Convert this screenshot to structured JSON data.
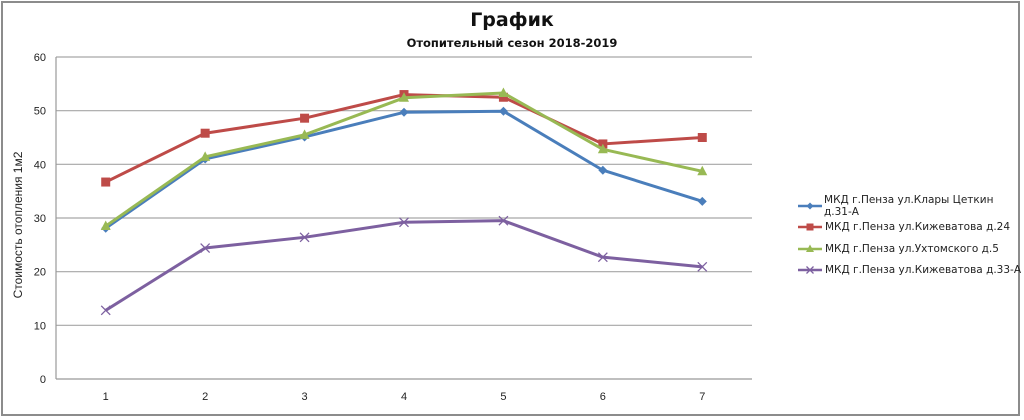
{
  "chart_data": {
    "type": "line",
    "title": "График",
    "subtitle": "Отопительный сезон 2018-2019",
    "xlabel": "",
    "ylabel": "Стоимость отопления 1м2",
    "categories": [
      "1",
      "2",
      "3",
      "4",
      "5",
      "6",
      "7"
    ],
    "ylim": [
      0,
      60
    ],
    "yticks": [
      0,
      10,
      20,
      30,
      40,
      50,
      60
    ],
    "grid": true,
    "legend_position": "right",
    "series": [
      {
        "name": "МКД г.Пенза ул.Клары Цеткин д.31-А",
        "color": "#4a7ebb",
        "marker": "diamond",
        "values": [
          28.1,
          41.0,
          45.1,
          49.7,
          49.9,
          38.9,
          33.1
        ]
      },
      {
        "name": "МКД г.Пенза ул.Кижеватова д.24",
        "color": "#be4b48",
        "marker": "square",
        "values": [
          36.7,
          45.8,
          48.6,
          53.0,
          52.5,
          43.8,
          45.0
        ]
      },
      {
        "name": "МКД г.Пенза ул.Ухтомского д.5",
        "color": "#98b954",
        "marker": "triangle",
        "values": [
          28.5,
          41.4,
          45.5,
          52.4,
          53.3,
          42.8,
          38.7
        ]
      },
      {
        "name": "МКД г.Пенза ул.Кижеватова д.33-А",
        "color": "#7d60a0",
        "marker": "x",
        "values": [
          12.8,
          24.4,
          26.4,
          29.2,
          29.5,
          22.7,
          20.9
        ]
      }
    ]
  }
}
